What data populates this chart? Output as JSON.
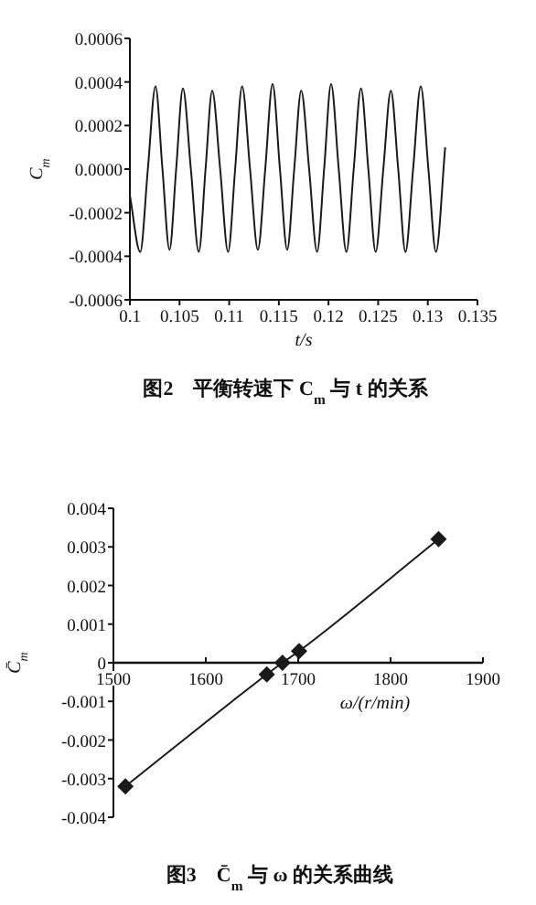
{
  "chart_data": [
    {
      "type": "line",
      "title": "图2　平衡转速下 C$_{m}$ 与 t 的关系",
      "xlabel": "t/s",
      "ylabel": "C$_{m}$",
      "xlim": [
        0.1,
        0.135
      ],
      "xticks": [
        0.1,
        0.105,
        0.11,
        0.115,
        0.12,
        0.125,
        0.13,
        0.135
      ],
      "ylim": [
        -0.0006,
        0.0006
      ],
      "yticks": [
        -0.0006,
        -0.0004,
        -0.0002,
        {
          "value": 0,
          "label": "0.0000"
        },
        0.0002,
        0.0004,
        0.0006
      ],
      "grid": false,
      "marker": "none",
      "line_style": "solid",
      "series": [
        {
          "color": "#1a1a1a",
          "x": [
            0.1,
            0.10104,
            0.10181,
            0.10258,
            0.10328,
            0.10399,
            0.10466,
            0.10534,
            0.10614,
            0.10694,
            0.10762,
            0.10829,
            0.10909,
            0.10989,
            0.1106,
            0.1113,
            0.1121,
            0.11289,
            0.11363,
            0.11437,
            0.11511,
            0.11584,
            0.11655,
            0.11725,
            0.11805,
            0.11885,
            0.11956,
            0.12026,
            0.12103,
            0.1218,
            0.12254,
            0.12327,
            0.12401,
            0.12475,
            0.12552,
            0.12628,
            0.12702,
            0.12775,
            0.12852,
            0.12929,
            0.13006,
            0.13082,
            0.13175
          ],
          "values": [
            -0.00012,
            -0.00038,
            0,
            0.00038,
            0,
            -0.00037,
            0,
            0.00037,
            0,
            -0.00038,
            0,
            0.00036,
            0,
            -0.00038,
            0,
            0.00038,
            0,
            -0.00037,
            0,
            0.00039,
            0,
            -0.00037,
            0,
            0.00036,
            0,
            -0.00038,
            0,
            0.00039,
            0,
            -0.00038,
            0,
            0.00037,
            0,
            -0.00038,
            0,
            0.00036,
            0,
            -0.00038,
            0,
            0.00038,
            0,
            -0.00038,
            0.0001
          ]
        }
      ]
    },
    {
      "type": "line",
      "title": "图3　C̄$_{m}$ 与 ω 的关系曲线",
      "xlabel": "ω/(r/min)",
      "ylabel": "C̄$_{m}$",
      "xlim": [
        1500,
        1900
      ],
      "xticks": [
        1500,
        1600,
        1700,
        1800,
        1900
      ],
      "ylim": [
        -0.004,
        0.004
      ],
      "yticks": [
        -0.004,
        -0.003,
        -0.002,
        -0.001,
        0,
        0.001,
        0.002,
        0.003,
        0.004
      ],
      "grid": false,
      "marker": "diamond",
      "line_style": "solid",
      "series": [
        {
          "color": "#1a1a1a",
          "x": [
            1513,
            1666,
            1683,
            1701,
            1852
          ],
          "values": [
            -0.0032,
            -0.0003,
            0,
            0.0003,
            0.0032
          ]
        }
      ]
    }
  ]
}
